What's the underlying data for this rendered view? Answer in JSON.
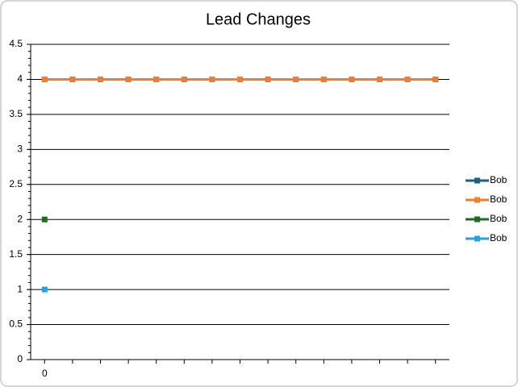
{
  "chart_data": {
    "type": "line",
    "title": "Lead Changes",
    "categories": [
      "0",
      null,
      null,
      null,
      null,
      null,
      null,
      null,
      null,
      null,
      null,
      null,
      null,
      null,
      null
    ],
    "series": [
      {
        "name": "Bob",
        "color": "#1f5f7f",
        "values": [
          4,
          4,
          4,
          4,
          4,
          4,
          4,
          4,
          4,
          4,
          4,
          4,
          4,
          4,
          4
        ]
      },
      {
        "name": "Bob",
        "color": "#ed7d31",
        "values": [
          4,
          4,
          4,
          4,
          4,
          4,
          4,
          4,
          4,
          4,
          4,
          4,
          4,
          4,
          4
        ]
      },
      {
        "name": "Bob",
        "color": "#1e6b24",
        "values": [
          2,
          null,
          null,
          null,
          null,
          null,
          null,
          null,
          null,
          null,
          null,
          null,
          null,
          null,
          null
        ]
      },
      {
        "name": "Bob",
        "color": "#2e9fdc",
        "values": [
          1,
          null,
          null,
          null,
          null,
          null,
          null,
          null,
          null,
          null,
          null,
          null,
          null,
          null,
          null
        ]
      }
    ],
    "ylim": [
      0,
      4.5
    ],
    "yticks": [
      0,
      0.5,
      1,
      1.5,
      2,
      2.5,
      3,
      3.5,
      4,
      4.5
    ],
    "grid": true,
    "legend": "right"
  }
}
